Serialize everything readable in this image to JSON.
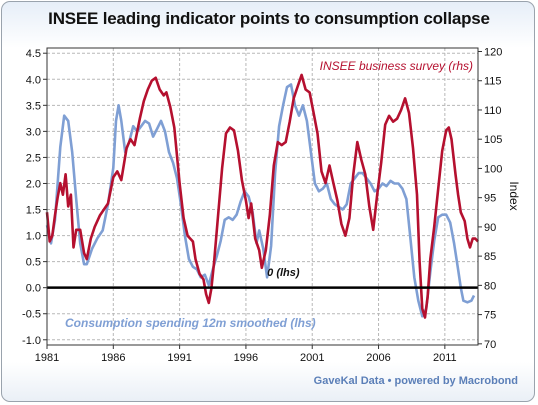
{
  "title": "INSEE leading indicator points to consumption collapse",
  "footer": "GaveKal Data • powered by Macrobond",
  "chart_data": {
    "type": "line",
    "title": "INSEE leading indicator points to consumption collapse",
    "x_axis": {
      "min": 1981,
      "max": 2013.5,
      "ticks": [
        1981,
        1986,
        1991,
        1996,
        2001,
        2006,
        2011
      ]
    },
    "y_left": {
      "min": -1.1,
      "max": 4.6,
      "ticks": [
        -1.0,
        -0.5,
        0.0,
        0.5,
        1.0,
        1.5,
        2.0,
        2.5,
        3.0,
        3.5,
        4.0,
        4.5
      ],
      "tick_labels": [
        "-1.0",
        "-0.5",
        "0.0",
        "0.5",
        "1.0",
        "1.5",
        "2.0",
        "2.5",
        "3.0",
        "3.5",
        "4.0",
        "4.5"
      ]
    },
    "y_right": {
      "min": 69.8,
      "max": 120.6,
      "ticks": [
        70,
        75,
        80,
        85,
        90,
        95,
        100,
        105,
        110,
        115,
        120
      ],
      "tick_labels": [
        "70",
        "75",
        "80",
        "85",
        "90",
        "95",
        "100",
        "105",
        "110",
        "115",
        "120"
      ],
      "label": "Index"
    },
    "grid": true,
    "annotations": [
      {
        "text": "0 (lhs)",
        "x": 1997.6,
        "y": 0.22,
        "axis": "left"
      }
    ],
    "zero_line": {
      "y": 0,
      "axis": "left"
    },
    "series": [
      {
        "name": "INSEE business survey (rhs)",
        "axis": "right",
        "color": "#b5102f",
        "points": [
          [
            1981.0,
            92.5
          ],
          [
            1981.2,
            87.5
          ],
          [
            1981.4,
            88.5
          ],
          [
            1981.6,
            92.0
          ],
          [
            1981.8,
            95.0
          ],
          [
            1982.0,
            97.5
          ],
          [
            1982.2,
            95.5
          ],
          [
            1982.4,
            99.0
          ],
          [
            1982.6,
            93.5
          ],
          [
            1982.8,
            95.5
          ],
          [
            1983.0,
            86.5
          ],
          [
            1983.2,
            89.5
          ],
          [
            1983.5,
            89.5
          ],
          [
            1983.8,
            85.5
          ],
          [
            1984.0,
            84.5
          ],
          [
            1984.3,
            88.0
          ],
          [
            1984.6,
            90.0
          ],
          [
            1985.0,
            92.0
          ],
          [
            1985.3,
            93.0
          ],
          [
            1985.6,
            94.0
          ],
          [
            1986.0,
            98.5
          ],
          [
            1986.3,
            99.5
          ],
          [
            1986.6,
            98.0
          ],
          [
            1987.0,
            103.5
          ],
          [
            1987.3,
            105.0
          ],
          [
            1987.6,
            104.0
          ],
          [
            1988.0,
            108.5
          ],
          [
            1988.3,
            111.5
          ],
          [
            1988.6,
            113.5
          ],
          [
            1988.9,
            115.0
          ],
          [
            1989.2,
            115.5
          ],
          [
            1989.5,
            113.5
          ],
          [
            1989.8,
            112.5
          ],
          [
            1990.0,
            113.0
          ],
          [
            1990.3,
            110.5
          ],
          [
            1990.6,
            107.0
          ],
          [
            1991.0,
            97.5
          ],
          [
            1991.3,
            91.5
          ],
          [
            1991.6,
            88.5
          ],
          [
            1992.0,
            87.5
          ],
          [
            1992.2,
            84.5
          ],
          [
            1992.5,
            82.0
          ],
          [
            1992.8,
            81.0
          ],
          [
            1993.0,
            78.5
          ],
          [
            1993.2,
            77.0
          ],
          [
            1993.4,
            79.5
          ],
          [
            1993.6,
            84.0
          ],
          [
            1993.9,
            92.0
          ],
          [
            1994.2,
            100.0
          ],
          [
            1994.5,
            106.0
          ],
          [
            1994.8,
            107.0
          ],
          [
            1995.1,
            106.5
          ],
          [
            1995.4,
            103.0
          ],
          [
            1995.7,
            98.0
          ],
          [
            1996.0,
            94.5
          ],
          [
            1996.2,
            91.5
          ],
          [
            1996.4,
            94.0
          ],
          [
            1996.7,
            88.0
          ],
          [
            1997.0,
            86.0
          ],
          [
            1997.2,
            83.0
          ],
          [
            1997.5,
            86.0
          ],
          [
            1997.8,
            92.0
          ],
          [
            1998.1,
            100.5
          ],
          [
            1998.4,
            104.5
          ],
          [
            1998.7,
            104.0
          ],
          [
            1999.0,
            104.5
          ],
          [
            1999.3,
            108.0
          ],
          [
            1999.6,
            112.0
          ],
          [
            1999.9,
            114.0
          ],
          [
            2000.2,
            116.0
          ],
          [
            2000.5,
            113.5
          ],
          [
            2000.8,
            113.0
          ],
          [
            2001.1,
            109.5
          ],
          [
            2001.4,
            106.0
          ],
          [
            2001.7,
            99.5
          ],
          [
            2002.0,
            97.5
          ],
          [
            2002.3,
            100.5
          ],
          [
            2002.6,
            97.5
          ],
          [
            2002.9,
            94.5
          ],
          [
            2003.2,
            90.5
          ],
          [
            2003.5,
            88.5
          ],
          [
            2003.8,
            91.5
          ],
          [
            2004.1,
            99.0
          ],
          [
            2004.4,
            104.5
          ],
          [
            2004.7,
            101.5
          ],
          [
            2005.0,
            99.0
          ],
          [
            2005.3,
            93.5
          ],
          [
            2005.6,
            89.5
          ],
          [
            2005.9,
            95.5
          ],
          [
            2006.2,
            101.0
          ],
          [
            2006.5,
            107.5
          ],
          [
            2006.8,
            109.0
          ],
          [
            2007.1,
            108.0
          ],
          [
            2007.4,
            108.5
          ],
          [
            2007.7,
            110.0
          ],
          [
            2008.0,
            112.0
          ],
          [
            2008.3,
            109.5
          ],
          [
            2008.6,
            103.5
          ],
          [
            2008.9,
            95.5
          ],
          [
            2009.1,
            84.0
          ],
          [
            2009.3,
            76.0
          ],
          [
            2009.5,
            74.5
          ],
          [
            2009.7,
            78.0
          ],
          [
            2009.9,
            84.5
          ],
          [
            2010.2,
            90.0
          ],
          [
            2010.5,
            96.5
          ],
          [
            2010.8,
            103.0
          ],
          [
            2011.1,
            106.5
          ],
          [
            2011.3,
            107.0
          ],
          [
            2011.5,
            105.0
          ],
          [
            2011.8,
            99.0
          ],
          [
            2012.0,
            95.5
          ],
          [
            2012.2,
            92.5
          ],
          [
            2012.5,
            91.0
          ],
          [
            2012.7,
            88.0
          ],
          [
            2012.9,
            86.5
          ],
          [
            2013.1,
            88.0
          ],
          [
            2013.3,
            88.0
          ],
          [
            2013.5,
            87.5
          ]
        ]
      },
      {
        "name": "Consumption spending 12m smoothed (lhs)",
        "axis": "left",
        "color": "#7f9fd4",
        "points": [
          [
            1981.0,
            1.2
          ],
          [
            1981.3,
            0.85
          ],
          [
            1981.6,
            1.3
          ],
          [
            1982.0,
            2.7
          ],
          [
            1982.3,
            3.3
          ],
          [
            1982.6,
            3.2
          ],
          [
            1982.9,
            2.6
          ],
          [
            1983.2,
            1.7
          ],
          [
            1983.5,
            0.85
          ],
          [
            1983.8,
            0.45
          ],
          [
            1984.0,
            0.45
          ],
          [
            1984.4,
            0.75
          ],
          [
            1984.8,
            0.95
          ],
          [
            1985.2,
            1.1
          ],
          [
            1985.6,
            1.6
          ],
          [
            1986.0,
            2.3
          ],
          [
            1986.2,
            3.2
          ],
          [
            1986.4,
            3.5
          ],
          [
            1986.6,
            3.2
          ],
          [
            1986.9,
            2.6
          ],
          [
            1987.2,
            2.8
          ],
          [
            1987.5,
            3.1
          ],
          [
            1987.8,
            3.0
          ],
          [
            1988.1,
            3.1
          ],
          [
            1988.4,
            3.2
          ],
          [
            1988.7,
            3.15
          ],
          [
            1989.0,
            2.9
          ],
          [
            1989.3,
            3.05
          ],
          [
            1989.6,
            3.2
          ],
          [
            1989.9,
            3.0
          ],
          [
            1990.2,
            2.6
          ],
          [
            1990.5,
            2.4
          ],
          [
            1990.8,
            2.1
          ],
          [
            1991.1,
            1.6
          ],
          [
            1991.4,
            1.0
          ],
          [
            1991.7,
            0.55
          ],
          [
            1992.0,
            0.4
          ],
          [
            1992.3,
            0.35
          ],
          [
            1992.6,
            0.2
          ],
          [
            1992.9,
            0.25
          ],
          [
            1993.2,
            0.05
          ],
          [
            1993.5,
            0.35
          ],
          [
            1993.8,
            0.6
          ],
          [
            1994.1,
            0.9
          ],
          [
            1994.4,
            1.3
          ],
          [
            1994.7,
            1.35
          ],
          [
            1995.0,
            1.3
          ],
          [
            1995.3,
            1.4
          ],
          [
            1995.6,
            1.65
          ],
          [
            1995.9,
            1.85
          ],
          [
            1996.2,
            1.75
          ],
          [
            1996.5,
            1.45
          ],
          [
            1996.8,
            0.85
          ],
          [
            1997.0,
            1.1
          ],
          [
            1997.3,
            0.75
          ],
          [
            1997.6,
            0.2
          ],
          [
            1997.9,
            0.8
          ],
          [
            1998.2,
            2.2
          ],
          [
            1998.5,
            3.1
          ],
          [
            1998.8,
            3.5
          ],
          [
            1999.1,
            3.85
          ],
          [
            1999.4,
            3.9
          ],
          [
            1999.7,
            3.5
          ],
          [
            2000.0,
            3.3
          ],
          [
            2000.3,
            3.5
          ],
          [
            2000.6,
            3.2
          ],
          [
            2000.9,
            2.6
          ],
          [
            2001.2,
            2.0
          ],
          [
            2001.5,
            1.85
          ],
          [
            2001.8,
            1.9
          ],
          [
            2002.1,
            2.0
          ],
          [
            2002.4,
            1.7
          ],
          [
            2002.7,
            1.6
          ],
          [
            2003.0,
            1.55
          ],
          [
            2003.3,
            1.5
          ],
          [
            2003.6,
            1.6
          ],
          [
            2003.9,
            2.0
          ],
          [
            2004.2,
            2.1
          ],
          [
            2004.5,
            2.2
          ],
          [
            2004.8,
            2.2
          ],
          [
            2005.1,
            2.1
          ],
          [
            2005.4,
            2.0
          ],
          [
            2005.7,
            1.85
          ],
          [
            2006.0,
            1.9
          ],
          [
            2006.3,
            2.0
          ],
          [
            2006.6,
            1.95
          ],
          [
            2006.9,
            2.05
          ],
          [
            2007.2,
            2.0
          ],
          [
            2007.5,
            2.0
          ],
          [
            2007.8,
            1.9
          ],
          [
            2008.1,
            1.7
          ],
          [
            2008.4,
            0.95
          ],
          [
            2008.7,
            0.2
          ],
          [
            2009.0,
            -0.25
          ],
          [
            2009.3,
            -0.55
          ],
          [
            2009.6,
            -0.4
          ],
          [
            2009.9,
            0.3
          ],
          [
            2010.2,
            0.9
          ],
          [
            2010.5,
            1.35
          ],
          [
            2010.8,
            1.4
          ],
          [
            2011.1,
            1.4
          ],
          [
            2011.4,
            1.25
          ],
          [
            2011.7,
            0.85
          ],
          [
            2012.0,
            0.35
          ],
          [
            2012.2,
            0.0
          ],
          [
            2012.4,
            -0.25
          ],
          [
            2012.7,
            -0.28
          ],
          [
            2013.0,
            -0.25
          ],
          [
            2013.2,
            -0.15
          ]
        ]
      }
    ]
  }
}
